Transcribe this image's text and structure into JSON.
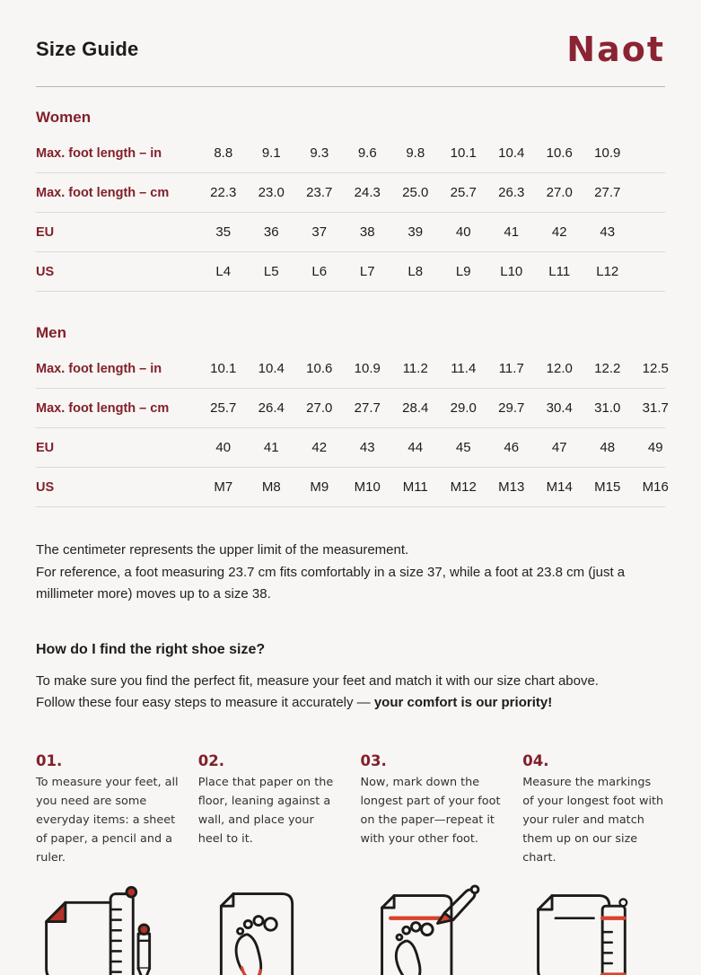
{
  "page": {
    "title": "Size Guide",
    "brand": "Naot"
  },
  "colors": {
    "background": "#f7f6f4",
    "heading_maroon": "#82202a",
    "logo_maroon": "#8a2433",
    "accent_red": "#d8432c",
    "fold_red": "#b23129",
    "text": "#1d1c1a",
    "row_border": "#dcd9d5"
  },
  "tables": [
    {
      "section": "Women",
      "rows": [
        {
          "label": "Max. foot length – in",
          "values": [
            "8.8",
            "9.1",
            "9.3",
            "9.6",
            "9.8",
            "10.1",
            "10.4",
            "10.6",
            "10.9"
          ]
        },
        {
          "label": "Max. foot length – cm",
          "values": [
            "22.3",
            "23.0",
            "23.7",
            "24.3",
            "25.0",
            "25.7",
            "26.3",
            "27.0",
            "27.7"
          ]
        },
        {
          "label": "EU",
          "values": [
            "35",
            "36",
            "37",
            "38",
            "39",
            "40",
            "41",
            "42",
            "43"
          ]
        },
        {
          "label": "US",
          "values": [
            "L4",
            "L5",
            "L6",
            "L7",
            "L8",
            "L9",
            "L10",
            "L11",
            "L12"
          ]
        }
      ]
    },
    {
      "section": "Men",
      "rows": [
        {
          "label": "Max. foot length – in",
          "values": [
            "10.1",
            "10.4",
            "10.6",
            "10.9",
            "11.2",
            "11.4",
            "11.7",
            "12.0",
            "12.2",
            "12.5"
          ]
        },
        {
          "label": "Max. foot length – cm",
          "values": [
            "25.7",
            "26.4",
            "27.0",
            "27.7",
            "28.4",
            "29.0",
            "29.7",
            "30.4",
            "31.0",
            "31.7"
          ]
        },
        {
          "label": "EU",
          "values": [
            "40",
            "41",
            "42",
            "43",
            "44",
            "45",
            "46",
            "47",
            "48",
            "49"
          ]
        },
        {
          "label": "US",
          "values": [
            "M7",
            "M8",
            "M9",
            "M10",
            "M11",
            "M12",
            "M13",
            "M14",
            "M15",
            "M16"
          ]
        }
      ]
    }
  ],
  "notes": {
    "line1": "The centimeter represents the upper limit of the measurement.",
    "line2": "For reference, a foot measuring 23.7 cm fits comfortably in a size 37, while a foot at 23.8 cm (just a millimeter more) moves up to a size 38."
  },
  "howto": {
    "heading": "How do I find the right shoe size?",
    "intro_normal": "To make sure you find the perfect fit, measure your feet and match it with our size chart above. Follow these four easy steps to measure it accurately — ",
    "intro_bold": "your comfort is our priority!",
    "steps": [
      {
        "num": "01.",
        "text": "To measure your feet, all you need are some everyday items: a sheet of paper, a pencil and a ruler.",
        "icon": "paper-ruler-pencil-icon"
      },
      {
        "num": "02.",
        "text": "Place that paper on the floor, leaning against a wall, and place your heel to it.",
        "icon": "paper-heel-footprint-icon"
      },
      {
        "num": "03.",
        "text": "Now, mark down the longest part of your foot on the paper—repeat it with your other foot.",
        "icon": "pencil-marking-footprint-icon"
      },
      {
        "num": "04.",
        "text": "Measure the markings of your longest foot with your ruler and match them up on our size chart.",
        "icon": "ruler-measuring-markings-icon"
      }
    ]
  }
}
